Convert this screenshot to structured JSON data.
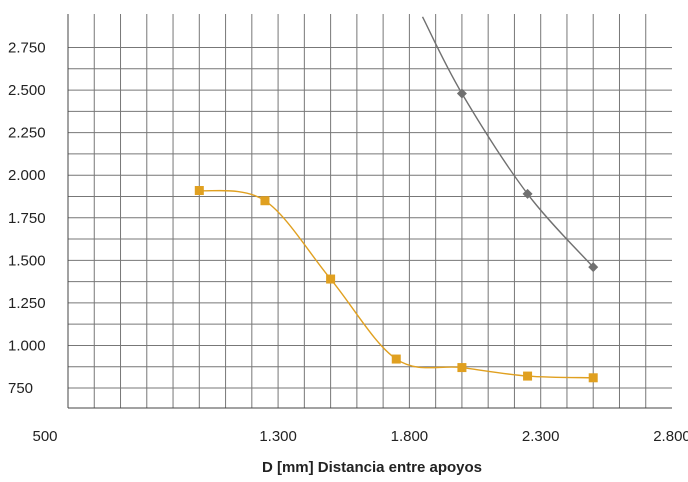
{
  "chart_data": {
    "type": "line",
    "title": "",
    "xlabel": "D [mm] Distancia entre apoyos",
    "ylabel": "",
    "xlim": [
      500,
      2800
    ],
    "ylim": [
      500,
      2900
    ],
    "x_tick_labels": [
      "500",
      "1.300",
      "1.800",
      "2.300",
      "2.800"
    ],
    "x_tick_values": [
      500,
      1300,
      1800,
      2300,
      2800
    ],
    "y_tick_labels": [
      "750",
      "1.000",
      "1.250",
      "1.500",
      "1.750",
      "2.000",
      "2.250",
      "2.500",
      "2.750"
    ],
    "y_tick_values": [
      750,
      1000,
      1250,
      1500,
      1750,
      2000,
      2250,
      2500,
      2750
    ],
    "grid": true,
    "series": [
      {
        "color": "#e0a020",
        "marker": "square",
        "x": [
          1000,
          1250,
          1500,
          1750,
          2000,
          2250,
          2500
        ],
        "y": [
          1910,
          1850,
          1390,
          920,
          870,
          820,
          810
        ]
      },
      {
        "color": "#707070",
        "marker": "diamond",
        "x": [
          1850,
          2000,
          2250,
          2500
        ],
        "y": [
          2930,
          2480,
          1890,
          1460
        ]
      }
    ]
  }
}
